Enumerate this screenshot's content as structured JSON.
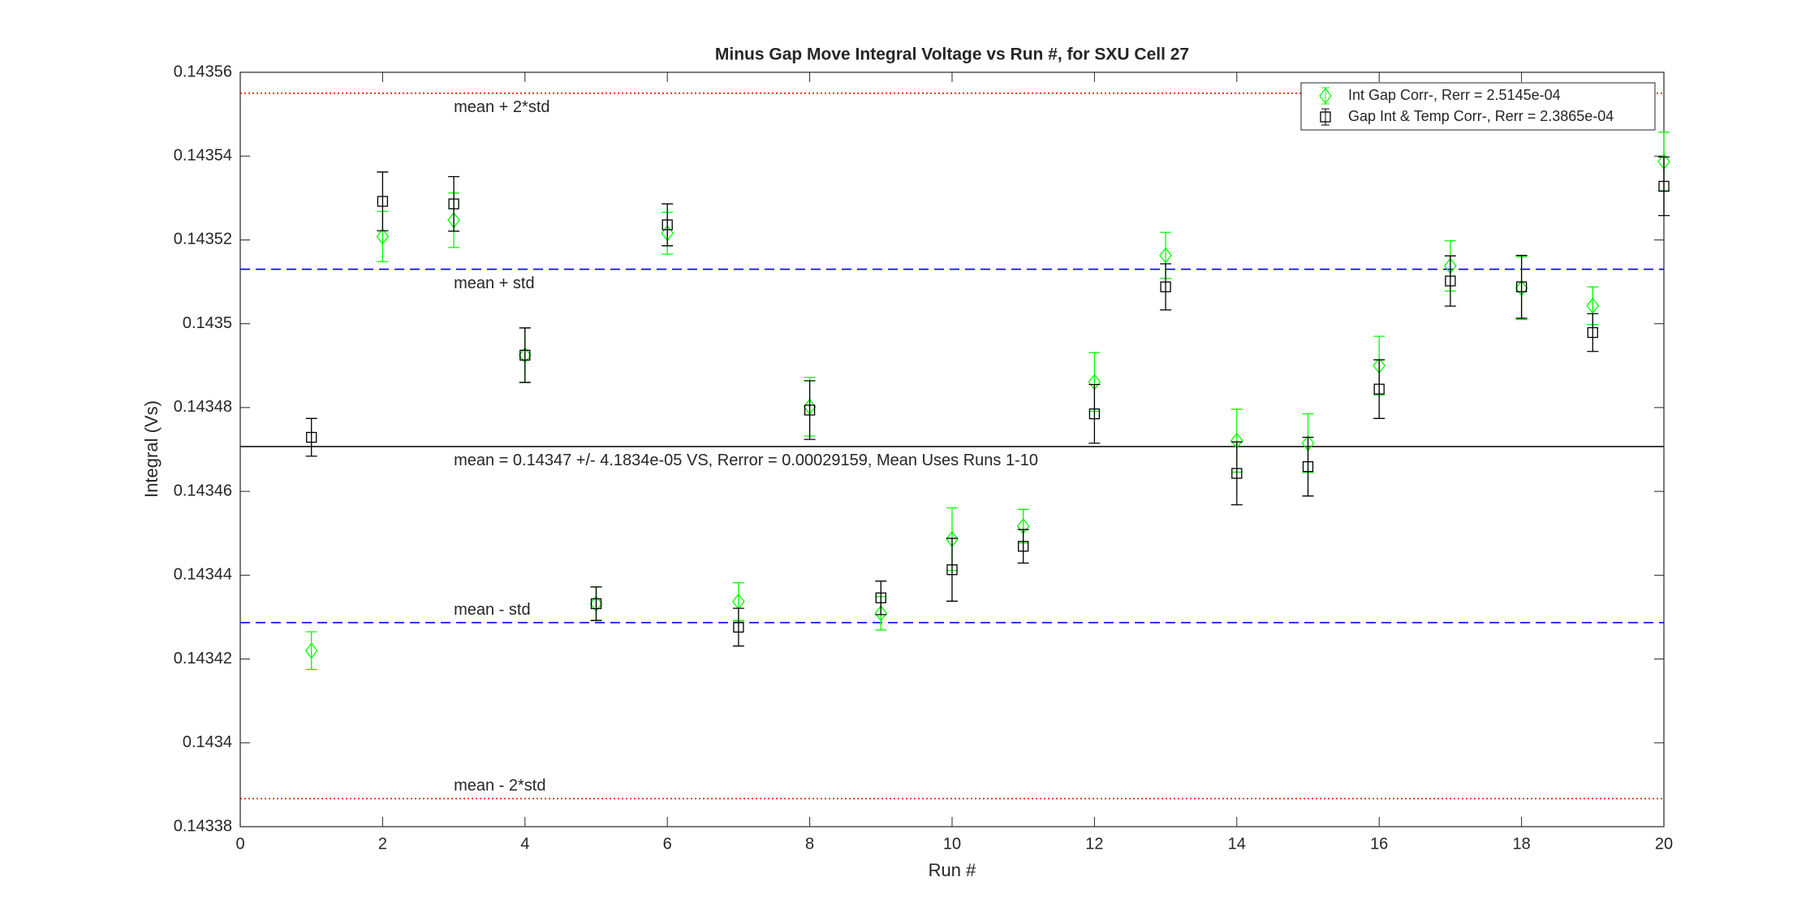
{
  "chart_data": {
    "type": "errorbar",
    "title": "Minus Gap Move Integral Voltage vs Run #, for SXU Cell 27",
    "x_label": "Run #",
    "y_label": "Integral (Vs)",
    "x": [
      1,
      2,
      3,
      4,
      5,
      6,
      7,
      8,
      9,
      10,
      11,
      12,
      13,
      14,
      15,
      16,
      17,
      18,
      19,
      20
    ],
    "series": [
      {
        "name": "Int Gap Corr-, Rerr = 2.5145e-04",
        "color": "#00ff00",
        "marker": "diamond",
        "values": [
          0.143422,
          0.1435208,
          0.1435247,
          0.1434925,
          0.1434332,
          0.1435216,
          0.1434337,
          0.1434802,
          0.1434309,
          0.1434486,
          0.1434517,
          0.1434861,
          0.1435163,
          0.1434721,
          0.1434715,
          0.14349,
          0.1435138,
          0.1435085,
          0.1435043,
          0.1435387
        ],
        "errors": [
          4.5e-06,
          6e-06,
          6.5e-06,
          6.5e-06,
          4e-06,
          5e-06,
          4.5e-06,
          7e-06,
          4e-06,
          7.5e-06,
          4e-06,
          7e-06,
          5.5e-06,
          7.5e-06,
          7e-06,
          7e-06,
          6e-06,
          7.5e-06,
          4.5e-06,
          7e-06
        ]
      },
      {
        "name": "Gap Int & Temp Corr-, Rerr = 2.3865e-04",
        "color": "#000000",
        "marker": "square",
        "values": [
          0.1434729,
          0.1435292,
          0.1435286,
          0.1434925,
          0.1434332,
          0.1435236,
          0.1434276,
          0.1434794,
          0.1434346,
          0.1434413,
          0.1434469,
          0.1434785,
          0.1435088,
          0.1434643,
          0.1434659,
          0.1434844,
          0.1435102,
          0.1435088,
          0.1434979,
          0.1435328
        ],
        "errors": [
          4.5e-06,
          7e-06,
          6.5e-06,
          6.5e-06,
          4e-06,
          5e-06,
          4.5e-06,
          7e-06,
          4e-06,
          7.5e-06,
          4e-06,
          7e-06,
          5.5e-06,
          7.5e-06,
          7e-06,
          7e-06,
          6e-06,
          7.5e-06,
          4.5e-06,
          7e-06
        ]
      }
    ],
    "hlines": [
      {
        "value": 0.143555,
        "label": "mean + 2*std",
        "color": "#ff0000",
        "style": "dotted"
      },
      {
        "value": 0.143513,
        "label": "mean + std",
        "color": "#0000ff",
        "style": "dashed"
      },
      {
        "value": 0.1434707,
        "label": "mean = 0.14347 +/- 4.1834e-05 VS, Rerror = 0.00029159, Mean Uses Runs 1-10",
        "color": "#000000",
        "style": "solid"
      },
      {
        "value": 0.1434287,
        "label": "mean - std",
        "color": "#0000ff",
        "style": "dashed"
      },
      {
        "value": 0.1433867,
        "label": "mean - 2*std",
        "color": "#ff0000",
        "style": "dotted"
      }
    ],
    "hline_label_x": 3,
    "xlim": [
      0,
      20
    ],
    "xticks": [
      0,
      2,
      4,
      6,
      8,
      10,
      12,
      14,
      16,
      18,
      20
    ],
    "ylim": [
      0.14338,
      0.14356
    ],
    "yticks": [
      0.14338,
      0.1434,
      0.14342,
      0.14344,
      0.14346,
      0.14348,
      0.1435,
      0.14352,
      0.14354,
      0.14356
    ],
    "legend": "northeast"
  }
}
